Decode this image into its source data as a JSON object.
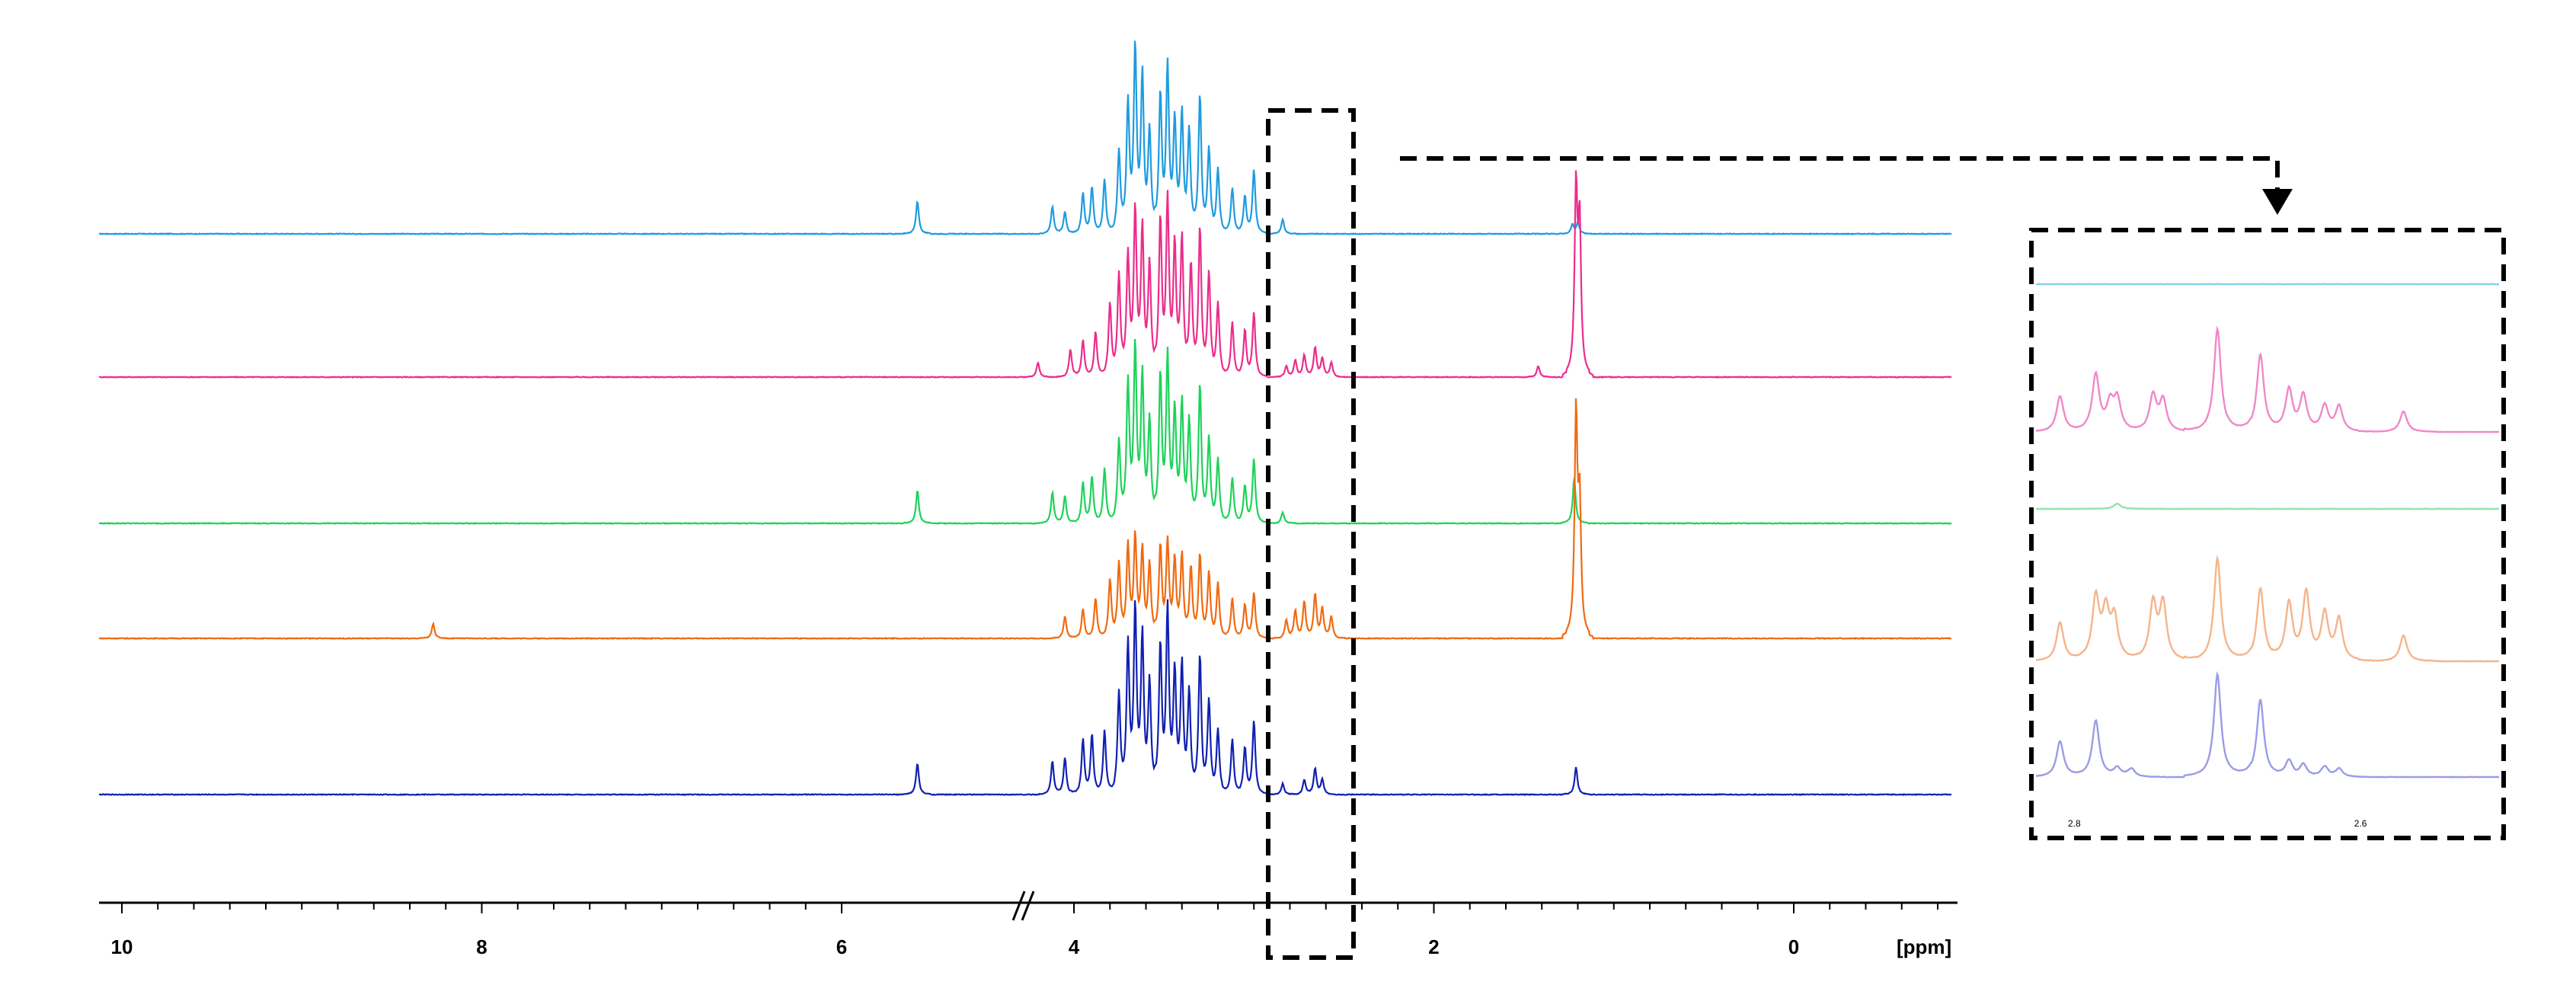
{
  "chart_data": [
    {
      "type": "line",
      "title": "",
      "xlabel": "[ppm]",
      "ylabel": "",
      "x_axis": {
        "reversed": true,
        "axis_break": [
          4.6,
          9.2
        ],
        "ticks": [
          {
            "value": 10,
            "label": "10"
          },
          {
            "value": 8,
            "label": "8"
          },
          {
            "value": 6,
            "label": "6"
          },
          {
            "value": 4,
            "label": "4"
          },
          {
            "value": 2,
            "label": "2"
          },
          {
            "value": 0,
            "label": "0"
          }
        ],
        "xlim": [
          10.2,
          -1
        ]
      },
      "grid": false,
      "legend": "none",
      "highlight_region_ppm": [
        2.5,
        2.9
      ],
      "series": [
        {
          "color": "#1E9BE0",
          "baseline_offset": 4,
          "peaks": [
            {
              "x": 4.87,
              "h": 0.18
            },
            {
              "x": 4.12,
              "h": 0.15
            },
            {
              "x": 4.05,
              "h": 0.12
            },
            {
              "x": 3.95,
              "h": 0.22
            },
            {
              "x": 3.9,
              "h": 0.25
            },
            {
              "x": 3.83,
              "h": 0.3
            },
            {
              "x": 3.75,
              "h": 0.45
            },
            {
              "x": 3.7,
              "h": 0.7
            },
            {
              "x": 3.66,
              "h": 1.0
            },
            {
              "x": 3.62,
              "h": 0.85
            },
            {
              "x": 3.58,
              "h": 0.55
            },
            {
              "x": 3.52,
              "h": 0.75
            },
            {
              "x": 3.48,
              "h": 0.9
            },
            {
              "x": 3.44,
              "h": 0.6
            },
            {
              "x": 3.4,
              "h": 0.65
            },
            {
              "x": 3.36,
              "h": 0.55
            },
            {
              "x": 3.3,
              "h": 0.75
            },
            {
              "x": 3.25,
              "h": 0.45
            },
            {
              "x": 3.2,
              "h": 0.35
            },
            {
              "x": 3.12,
              "h": 0.25
            },
            {
              "x": 3.05,
              "h": 0.2
            },
            {
              "x": 3.0,
              "h": 0.35
            },
            {
              "x": 2.84,
              "h": 0.08
            },
            {
              "x": 1.23,
              "h": 0.05
            },
            {
              "x": 1.2,
              "h": 0.06
            }
          ]
        },
        {
          "color": "#EC2C8C",
          "baseline_offset": 3,
          "peaks": [
            {
              "x": 4.2,
              "h": 0.08
            },
            {
              "x": 4.02,
              "h": 0.15
            },
            {
              "x": 3.95,
              "h": 0.2
            },
            {
              "x": 3.88,
              "h": 0.25
            },
            {
              "x": 3.8,
              "h": 0.4
            },
            {
              "x": 3.75,
              "h": 0.55
            },
            {
              "x": 3.7,
              "h": 0.65
            },
            {
              "x": 3.66,
              "h": 0.9
            },
            {
              "x": 3.62,
              "h": 0.8
            },
            {
              "x": 3.58,
              "h": 0.6
            },
            {
              "x": 3.52,
              "h": 0.85
            },
            {
              "x": 3.48,
              "h": 0.95
            },
            {
              "x": 3.44,
              "h": 0.7
            },
            {
              "x": 3.4,
              "h": 0.75
            },
            {
              "x": 3.35,
              "h": 0.6
            },
            {
              "x": 3.3,
              "h": 0.8
            },
            {
              "x": 3.25,
              "h": 0.55
            },
            {
              "x": 3.2,
              "h": 0.4
            },
            {
              "x": 3.12,
              "h": 0.3
            },
            {
              "x": 3.05,
              "h": 0.25
            },
            {
              "x": 3.0,
              "h": 0.35
            },
            {
              "x": 2.82,
              "h": 0.06
            },
            {
              "x": 2.77,
              "h": 0.09
            },
            {
              "x": 2.72,
              "h": 0.12
            },
            {
              "x": 2.66,
              "h": 0.16
            },
            {
              "x": 2.62,
              "h": 0.1
            },
            {
              "x": 2.57,
              "h": 0.08
            },
            {
              "x": 1.42,
              "h": 0.06
            },
            {
              "x": 1.21,
              "h": 1.0
            },
            {
              "x": 1.19,
              "h": 0.8
            }
          ]
        },
        {
          "color": "#1ED25A",
          "baseline_offset": 2,
          "peaks": [
            {
              "x": 4.87,
              "h": 0.18
            },
            {
              "x": 4.12,
              "h": 0.17
            },
            {
              "x": 4.05,
              "h": 0.15
            },
            {
              "x": 3.95,
              "h": 0.22
            },
            {
              "x": 3.9,
              "h": 0.25
            },
            {
              "x": 3.83,
              "h": 0.3
            },
            {
              "x": 3.75,
              "h": 0.45
            },
            {
              "x": 3.7,
              "h": 0.75
            },
            {
              "x": 3.66,
              "h": 0.95
            },
            {
              "x": 3.62,
              "h": 0.8
            },
            {
              "x": 3.58,
              "h": 0.55
            },
            {
              "x": 3.52,
              "h": 0.8
            },
            {
              "x": 3.48,
              "h": 0.9
            },
            {
              "x": 3.44,
              "h": 0.6
            },
            {
              "x": 3.4,
              "h": 0.65
            },
            {
              "x": 3.36,
              "h": 0.55
            },
            {
              "x": 3.3,
              "h": 0.75
            },
            {
              "x": 3.25,
              "h": 0.45
            },
            {
              "x": 3.2,
              "h": 0.35
            },
            {
              "x": 3.12,
              "h": 0.25
            },
            {
              "x": 3.05,
              "h": 0.2
            },
            {
              "x": 3.0,
              "h": 0.35
            },
            {
              "x": 2.84,
              "h": 0.06
            },
            {
              "x": 1.22,
              "h": 0.25
            }
          ]
        },
        {
          "color": "#F06A10",
          "baseline_offset": 1,
          "peaks": [
            {
              "x": 8.27,
              "h": 0.08
            },
            {
              "x": 4.05,
              "h": 0.12
            },
            {
              "x": 3.95,
              "h": 0.16
            },
            {
              "x": 3.88,
              "h": 0.22
            },
            {
              "x": 3.8,
              "h": 0.32
            },
            {
              "x": 3.75,
              "h": 0.4
            },
            {
              "x": 3.7,
              "h": 0.5
            },
            {
              "x": 3.66,
              "h": 0.55
            },
            {
              "x": 3.62,
              "h": 0.48
            },
            {
              "x": 3.58,
              "h": 0.4
            },
            {
              "x": 3.52,
              "h": 0.5
            },
            {
              "x": 3.48,
              "h": 0.52
            },
            {
              "x": 3.44,
              "h": 0.42
            },
            {
              "x": 3.4,
              "h": 0.45
            },
            {
              "x": 3.35,
              "h": 0.38
            },
            {
              "x": 3.3,
              "h": 0.45
            },
            {
              "x": 3.25,
              "h": 0.35
            },
            {
              "x": 3.2,
              "h": 0.3
            },
            {
              "x": 3.12,
              "h": 0.22
            },
            {
              "x": 3.05,
              "h": 0.18
            },
            {
              "x": 3.0,
              "h": 0.25
            },
            {
              "x": 2.82,
              "h": 0.1
            },
            {
              "x": 2.77,
              "h": 0.15
            },
            {
              "x": 2.72,
              "h": 0.2
            },
            {
              "x": 2.66,
              "h": 0.24
            },
            {
              "x": 2.62,
              "h": 0.16
            },
            {
              "x": 2.57,
              "h": 0.12
            },
            {
              "x": 1.21,
              "h": 1.2
            },
            {
              "x": 1.19,
              "h": 0.7
            }
          ]
        },
        {
          "color": "#1020B0",
          "baseline_offset": 0,
          "peaks": [
            {
              "x": 4.87,
              "h": 0.17
            },
            {
              "x": 4.12,
              "h": 0.18
            },
            {
              "x": 4.05,
              "h": 0.2
            },
            {
              "x": 3.95,
              "h": 0.3
            },
            {
              "x": 3.9,
              "h": 0.32
            },
            {
              "x": 3.83,
              "h": 0.35
            },
            {
              "x": 3.75,
              "h": 0.55
            },
            {
              "x": 3.7,
              "h": 0.8
            },
            {
              "x": 3.66,
              "h": 1.0
            },
            {
              "x": 3.62,
              "h": 0.85
            },
            {
              "x": 3.58,
              "h": 0.6
            },
            {
              "x": 3.52,
              "h": 0.8
            },
            {
              "x": 3.48,
              "h": 1.0
            },
            {
              "x": 3.44,
              "h": 0.65
            },
            {
              "x": 3.4,
              "h": 0.7
            },
            {
              "x": 3.36,
              "h": 0.55
            },
            {
              "x": 3.3,
              "h": 0.75
            },
            {
              "x": 3.25,
              "h": 0.5
            },
            {
              "x": 3.2,
              "h": 0.35
            },
            {
              "x": 3.12,
              "h": 0.3
            },
            {
              "x": 3.05,
              "h": 0.25
            },
            {
              "x": 3.0,
              "h": 0.4
            },
            {
              "x": 2.84,
              "h": 0.06
            },
            {
              "x": 2.72,
              "h": 0.08
            },
            {
              "x": 2.66,
              "h": 0.14
            },
            {
              "x": 2.62,
              "h": 0.08
            },
            {
              "x": 1.21,
              "h": 0.15
            }
          ]
        }
      ]
    },
    {
      "type": "line",
      "title": "",
      "xlabel": "",
      "ylabel": "",
      "x_axis": {
        "reversed": true,
        "ticks": [
          {
            "value": 2.8,
            "label": "2.8"
          },
          {
            "value": 2.6,
            "label": "2.6"
          }
        ],
        "xlim": [
          2.83,
          2.5
        ]
      },
      "grid": false,
      "legend": "none",
      "series": [
        {
          "color": "#87CFF0",
          "baseline_offset": 4,
          "peaks": []
        },
        {
          "color": "#F088C8",
          "baseline_offset": 3,
          "peaks": [
            {
              "x": 2.81,
              "h": 0.35
            },
            {
              "x": 2.785,
              "h": 0.55
            },
            {
              "x": 2.775,
              "h": 0.25
            },
            {
              "x": 2.77,
              "h": 0.3
            },
            {
              "x": 2.745,
              "h": 0.35
            },
            {
              "x": 2.738,
              "h": 0.3
            },
            {
              "x": 2.7,
              "h": 1.0
            },
            {
              "x": 2.67,
              "h": 0.75
            },
            {
              "x": 2.65,
              "h": 0.4
            },
            {
              "x": 2.64,
              "h": 0.35
            },
            {
              "x": 2.625,
              "h": 0.25
            },
            {
              "x": 2.615,
              "h": 0.25
            },
            {
              "x": 2.57,
              "h": 0.2
            }
          ]
        },
        {
          "color": "#8EE6A8",
          "baseline_offset": 2,
          "peaks": [
            {
              "x": 2.77,
              "h": 0.05
            }
          ]
        },
        {
          "color": "#F5B48A",
          "baseline_offset": 1,
          "peaks": [
            {
              "x": 2.81,
              "h": 0.38
            },
            {
              "x": 2.785,
              "h": 0.6
            },
            {
              "x": 2.778,
              "h": 0.45
            },
            {
              "x": 2.772,
              "h": 0.4
            },
            {
              "x": 2.745,
              "h": 0.55
            },
            {
              "x": 2.738,
              "h": 0.55
            },
            {
              "x": 2.7,
              "h": 1.0
            },
            {
              "x": 2.67,
              "h": 0.7
            },
            {
              "x": 2.65,
              "h": 0.55
            },
            {
              "x": 2.638,
              "h": 0.65
            },
            {
              "x": 2.625,
              "h": 0.45
            },
            {
              "x": 2.615,
              "h": 0.4
            },
            {
              "x": 2.57,
              "h": 0.25
            }
          ]
        },
        {
          "color": "#9A9CE6",
          "baseline_offset": 0,
          "peaks": [
            {
              "x": 2.81,
              "h": 0.35
            },
            {
              "x": 2.785,
              "h": 0.55
            },
            {
              "x": 2.77,
              "h": 0.08
            },
            {
              "x": 2.76,
              "h": 0.08
            },
            {
              "x": 2.7,
              "h": 1.0
            },
            {
              "x": 2.67,
              "h": 0.75
            },
            {
              "x": 2.65,
              "h": 0.15
            },
            {
              "x": 2.64,
              "h": 0.12
            },
            {
              "x": 2.625,
              "h": 0.1
            },
            {
              "x": 2.615,
              "h": 0.08
            }
          ]
        }
      ]
    }
  ]
}
